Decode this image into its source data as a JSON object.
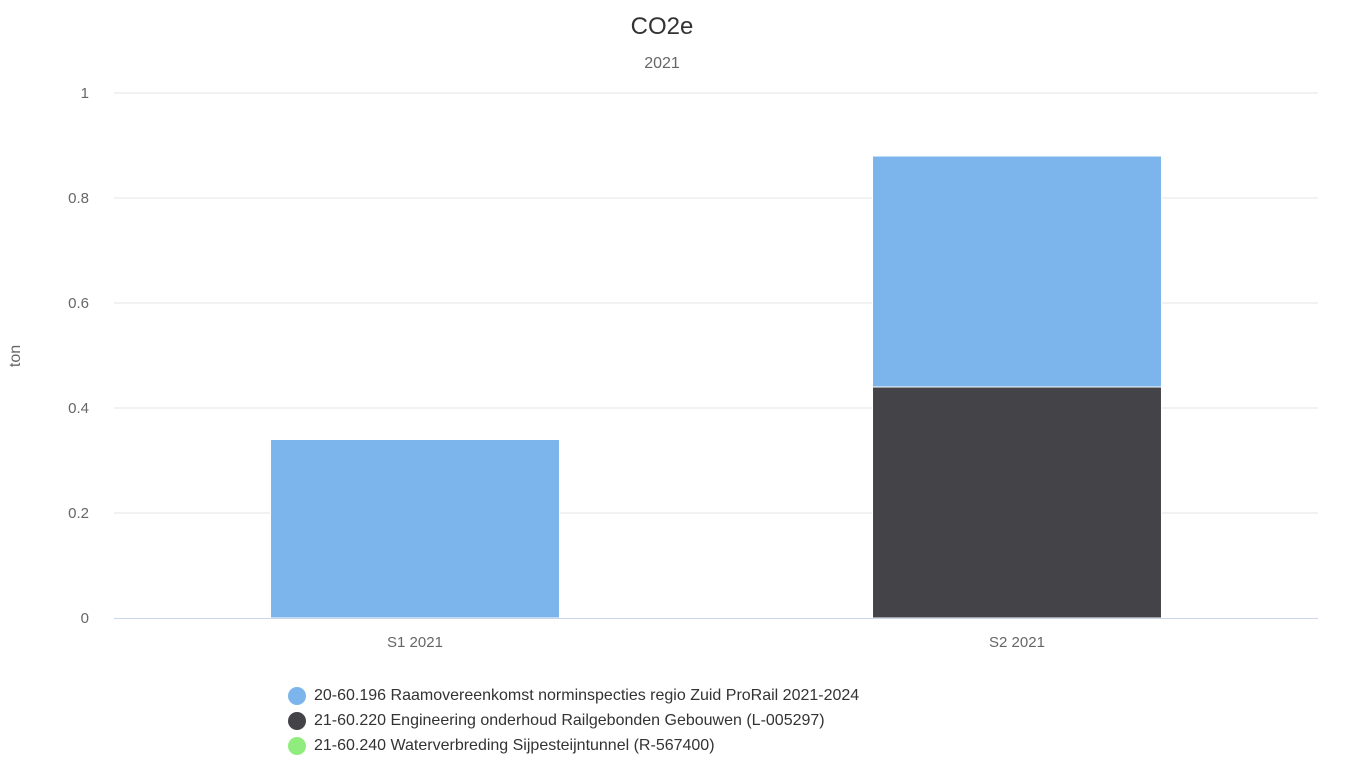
{
  "chart_data": {
    "type": "bar",
    "stacked": true,
    "title": "CO2e",
    "subtitle": "2021",
    "xlabel": "",
    "ylabel": "ton",
    "ylim": [
      0,
      1
    ],
    "yticks": [
      "0",
      "0.2",
      "0.4",
      "0.6",
      "0.8",
      "1"
    ],
    "categories": [
      "S1 2021",
      "S2 2021"
    ],
    "series": [
      {
        "name": "21-60.220 Engineering onderhoud Railgebonden Gebouwen (L-005297)",
        "color": "#434348",
        "values": [
          0,
          0.44
        ]
      },
      {
        "name": "20-60.196 Raamovereenkomst norminspecties regio Zuid ProRail 2021-2024",
        "color": "#7cb5ec",
        "values": [
          0.34,
          0.44
        ]
      },
      {
        "name": "21-60.240 Waterverbreding Sijpesteijntunnel (R-567400)",
        "color": "#90ed7d",
        "values": [
          0,
          0
        ]
      }
    ],
    "legend": [
      {
        "name": "20-60.196 Raamovereenkomst norminspecties regio Zuid ProRail 2021-2024",
        "color": "#7cb5ec"
      },
      {
        "name": "21-60.220 Engineering onderhoud Railgebonden Gebouwen (L-005297)",
        "color": "#434348"
      },
      {
        "name": "21-60.240 Waterverbreding Sijpesteijntunnel (R-567400)",
        "color": "#90ed7d"
      }
    ],
    "grid": true,
    "legend_position": "bottom"
  }
}
